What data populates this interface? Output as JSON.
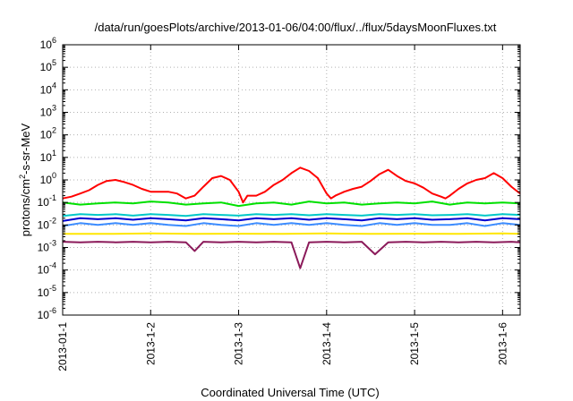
{
  "chart_data": {
    "type": "line",
    "title": "/data/run/goesPlots/archive/2013-01-06/04:00/flux/../flux/5daysMoonFluxes.txt",
    "xlabel": "Coordinated Universal Time (UTC)",
    "ylabel": {
      "prefix": "protons/cm",
      "superscript": "2",
      "suffix": "-s-sr-MeV"
    },
    "y_scale": "log",
    "ylim_exponents": [
      -6,
      6
    ],
    "y_ticks": [
      {
        "base": "10",
        "exp": "6"
      },
      {
        "base": "10",
        "exp": "5"
      },
      {
        "base": "10",
        "exp": "4"
      },
      {
        "base": "10",
        "exp": "3"
      },
      {
        "base": "10",
        "exp": "2"
      },
      {
        "base": "10",
        "exp": "1"
      },
      {
        "base": "10",
        "exp": "0"
      },
      {
        "base": "10",
        "exp": "-1"
      },
      {
        "base": "10",
        "exp": "-2"
      },
      {
        "base": "10",
        "exp": "-3"
      },
      {
        "base": "10",
        "exp": "-4"
      },
      {
        "base": "10",
        "exp": "-5"
      },
      {
        "base": "10",
        "exp": "-6"
      }
    ],
    "x_range_days": [
      0,
      5.2
    ],
    "x_ticks": [
      {
        "label": "2013-01-1",
        "day": 0
      },
      {
        "label": "2013-1-2",
        "day": 1
      },
      {
        "label": "2013-1-3",
        "day": 2
      },
      {
        "label": "2013-1-4",
        "day": 3
      },
      {
        "label": "2013-1-5",
        "day": 4
      },
      {
        "label": "2013-1-6",
        "day": 5
      }
    ],
    "grid": true,
    "legend": "none",
    "series": [
      {
        "color": "#ff0000",
        "values": [
          [
            0,
            0.15
          ],
          [
            0.1,
            0.18
          ],
          [
            0.2,
            0.25
          ],
          [
            0.3,
            0.35
          ],
          [
            0.4,
            0.6
          ],
          [
            0.5,
            0.9
          ],
          [
            0.6,
            1.0
          ],
          [
            0.7,
            0.8
          ],
          [
            0.8,
            0.6
          ],
          [
            0.9,
            0.4
          ],
          [
            1.0,
            0.3
          ],
          [
            1.1,
            0.3
          ],
          [
            1.2,
            0.3
          ],
          [
            1.3,
            0.25
          ],
          [
            1.4,
            0.15
          ],
          [
            1.5,
            0.2
          ],
          [
            1.6,
            0.5
          ],
          [
            1.7,
            1.2
          ],
          [
            1.8,
            1.5
          ],
          [
            1.9,
            1.0
          ],
          [
            2.0,
            0.3
          ],
          [
            2.05,
            0.1
          ],
          [
            2.1,
            0.2
          ],
          [
            2.2,
            0.2
          ],
          [
            2.3,
            0.3
          ],
          [
            2.4,
            0.6
          ],
          [
            2.5,
            1.0
          ],
          [
            2.6,
            2.0
          ],
          [
            2.7,
            3.5
          ],
          [
            2.8,
            2.5
          ],
          [
            2.9,
            1.2
          ],
          [
            3.0,
            0.25
          ],
          [
            3.05,
            0.15
          ],
          [
            3.1,
            0.2
          ],
          [
            3.2,
            0.3
          ],
          [
            3.3,
            0.4
          ],
          [
            3.4,
            0.5
          ],
          [
            3.5,
            0.9
          ],
          [
            3.6,
            1.8
          ],
          [
            3.7,
            2.8
          ],
          [
            3.8,
            1.5
          ],
          [
            3.9,
            0.9
          ],
          [
            4.0,
            0.7
          ],
          [
            4.1,
            0.45
          ],
          [
            4.2,
            0.25
          ],
          [
            4.3,
            0.18
          ],
          [
            4.35,
            0.15
          ],
          [
            4.4,
            0.2
          ],
          [
            4.5,
            0.4
          ],
          [
            4.6,
            0.7
          ],
          [
            4.7,
            1.0
          ],
          [
            4.8,
            1.2
          ],
          [
            4.9,
            2.0
          ],
          [
            5.0,
            1.2
          ],
          [
            5.1,
            0.5
          ],
          [
            5.15,
            0.35
          ],
          [
            5.2,
            0.25
          ]
        ]
      },
      {
        "color": "#00e000",
        "values": [
          [
            0,
            0.1
          ],
          [
            0.2,
            0.08
          ],
          [
            0.4,
            0.09
          ],
          [
            0.6,
            0.1
          ],
          [
            0.8,
            0.09
          ],
          [
            1.0,
            0.11
          ],
          [
            1.2,
            0.1
          ],
          [
            1.4,
            0.08
          ],
          [
            1.6,
            0.09
          ],
          [
            1.8,
            0.1
          ],
          [
            2.0,
            0.07
          ],
          [
            2.2,
            0.09
          ],
          [
            2.4,
            0.1
          ],
          [
            2.6,
            0.08
          ],
          [
            2.8,
            0.11
          ],
          [
            3.0,
            0.09
          ],
          [
            3.2,
            0.1
          ],
          [
            3.4,
            0.08
          ],
          [
            3.6,
            0.09
          ],
          [
            3.8,
            0.1
          ],
          [
            4.0,
            0.09
          ],
          [
            4.2,
            0.11
          ],
          [
            4.4,
            0.08
          ],
          [
            4.6,
            0.1
          ],
          [
            4.8,
            0.09
          ],
          [
            5.0,
            0.1
          ],
          [
            5.2,
            0.09
          ]
        ]
      },
      {
        "color": "#00c8c8",
        "values": [
          [
            0,
            0.025
          ],
          [
            0.2,
            0.03
          ],
          [
            0.4,
            0.028
          ],
          [
            0.6,
            0.03
          ],
          [
            0.8,
            0.026
          ],
          [
            1.0,
            0.03
          ],
          [
            1.2,
            0.028
          ],
          [
            1.4,
            0.025
          ],
          [
            1.6,
            0.03
          ],
          [
            1.8,
            0.028
          ],
          [
            2.0,
            0.026
          ],
          [
            2.2,
            0.03
          ],
          [
            2.4,
            0.028
          ],
          [
            2.6,
            0.03
          ],
          [
            2.8,
            0.027
          ],
          [
            3.0,
            0.03
          ],
          [
            3.2,
            0.028
          ],
          [
            3.4,
            0.026
          ],
          [
            3.6,
            0.03
          ],
          [
            3.8,
            0.028
          ],
          [
            4.0,
            0.03
          ],
          [
            4.2,
            0.027
          ],
          [
            4.4,
            0.028
          ],
          [
            4.6,
            0.03
          ],
          [
            4.8,
            0.026
          ],
          [
            5.0,
            0.03
          ],
          [
            5.2,
            0.028
          ]
        ]
      },
      {
        "color": "#0000d0",
        "values": [
          [
            0,
            0.015
          ],
          [
            0.2,
            0.02
          ],
          [
            0.4,
            0.018
          ],
          [
            0.6,
            0.02
          ],
          [
            0.8,
            0.017
          ],
          [
            1.0,
            0.02
          ],
          [
            1.2,
            0.018
          ],
          [
            1.4,
            0.016
          ],
          [
            1.6,
            0.02
          ],
          [
            1.8,
            0.018
          ],
          [
            2.0,
            0.016
          ],
          [
            2.2,
            0.02
          ],
          [
            2.4,
            0.018
          ],
          [
            2.6,
            0.02
          ],
          [
            2.8,
            0.017
          ],
          [
            3.0,
            0.02
          ],
          [
            3.2,
            0.018
          ],
          [
            3.4,
            0.016
          ],
          [
            3.6,
            0.02
          ],
          [
            3.8,
            0.018
          ],
          [
            4.0,
            0.02
          ],
          [
            4.2,
            0.017
          ],
          [
            4.4,
            0.018
          ],
          [
            4.6,
            0.02
          ],
          [
            4.8,
            0.016
          ],
          [
            5.0,
            0.02
          ],
          [
            5.2,
            0.018
          ]
        ]
      },
      {
        "color": "#3c8cff",
        "values": [
          [
            0,
            0.009
          ],
          [
            0.2,
            0.012
          ],
          [
            0.4,
            0.01
          ],
          [
            0.6,
            0.012
          ],
          [
            0.8,
            0.01
          ],
          [
            1.0,
            0.012
          ],
          [
            1.2,
            0.01
          ],
          [
            1.4,
            0.009
          ],
          [
            1.6,
            0.012
          ],
          [
            1.8,
            0.01
          ],
          [
            2.0,
            0.009
          ],
          [
            2.2,
            0.012
          ],
          [
            2.4,
            0.01
          ],
          [
            2.6,
            0.012
          ],
          [
            2.8,
            0.01
          ],
          [
            3.0,
            0.012
          ],
          [
            3.2,
            0.01
          ],
          [
            3.4,
            0.009
          ],
          [
            3.6,
            0.012
          ],
          [
            3.8,
            0.01
          ],
          [
            4.0,
            0.012
          ],
          [
            4.2,
            0.01
          ],
          [
            4.4,
            0.01
          ],
          [
            4.6,
            0.012
          ],
          [
            4.8,
            0.009
          ],
          [
            5.0,
            0.012
          ],
          [
            5.2,
            0.01
          ]
        ]
      },
      {
        "color": "#ffe600",
        "values": [
          [
            0,
            0.004
          ],
          [
            0.5,
            0.004
          ],
          [
            1.0,
            0.0042
          ],
          [
            1.5,
            0.004
          ],
          [
            2.0,
            0.0041
          ],
          [
            2.5,
            0.004
          ],
          [
            3.0,
            0.0042
          ],
          [
            3.5,
            0.004
          ],
          [
            4.0,
            0.0041
          ],
          [
            4.5,
            0.004
          ],
          [
            5.0,
            0.0042
          ],
          [
            5.2,
            0.004
          ]
        ]
      },
      {
        "color": "#8b1a5a",
        "values": [
          [
            0,
            0.0018
          ],
          [
            0.2,
            0.0017
          ],
          [
            0.4,
            0.0018
          ],
          [
            0.6,
            0.0017
          ],
          [
            0.8,
            0.0018
          ],
          [
            1.0,
            0.0017
          ],
          [
            1.2,
            0.0018
          ],
          [
            1.4,
            0.0017
          ],
          [
            1.5,
            0.0007
          ],
          [
            1.6,
            0.0018
          ],
          [
            1.8,
            0.0017
          ],
          [
            2.0,
            0.0018
          ],
          [
            2.2,
            0.0017
          ],
          [
            2.4,
            0.0018
          ],
          [
            2.6,
            0.0017
          ],
          [
            2.7,
            0.00012
          ],
          [
            2.8,
            0.0017
          ],
          [
            3.0,
            0.0018
          ],
          [
            3.2,
            0.0017
          ],
          [
            3.4,
            0.0018
          ],
          [
            3.55,
            0.0005
          ],
          [
            3.7,
            0.0017
          ],
          [
            3.9,
            0.0018
          ],
          [
            4.1,
            0.0017
          ],
          [
            4.3,
            0.0018
          ],
          [
            4.5,
            0.0017
          ],
          [
            4.7,
            0.0018
          ],
          [
            4.9,
            0.0017
          ],
          [
            5.1,
            0.0018
          ],
          [
            5.2,
            0.0017
          ]
        ]
      }
    ]
  }
}
